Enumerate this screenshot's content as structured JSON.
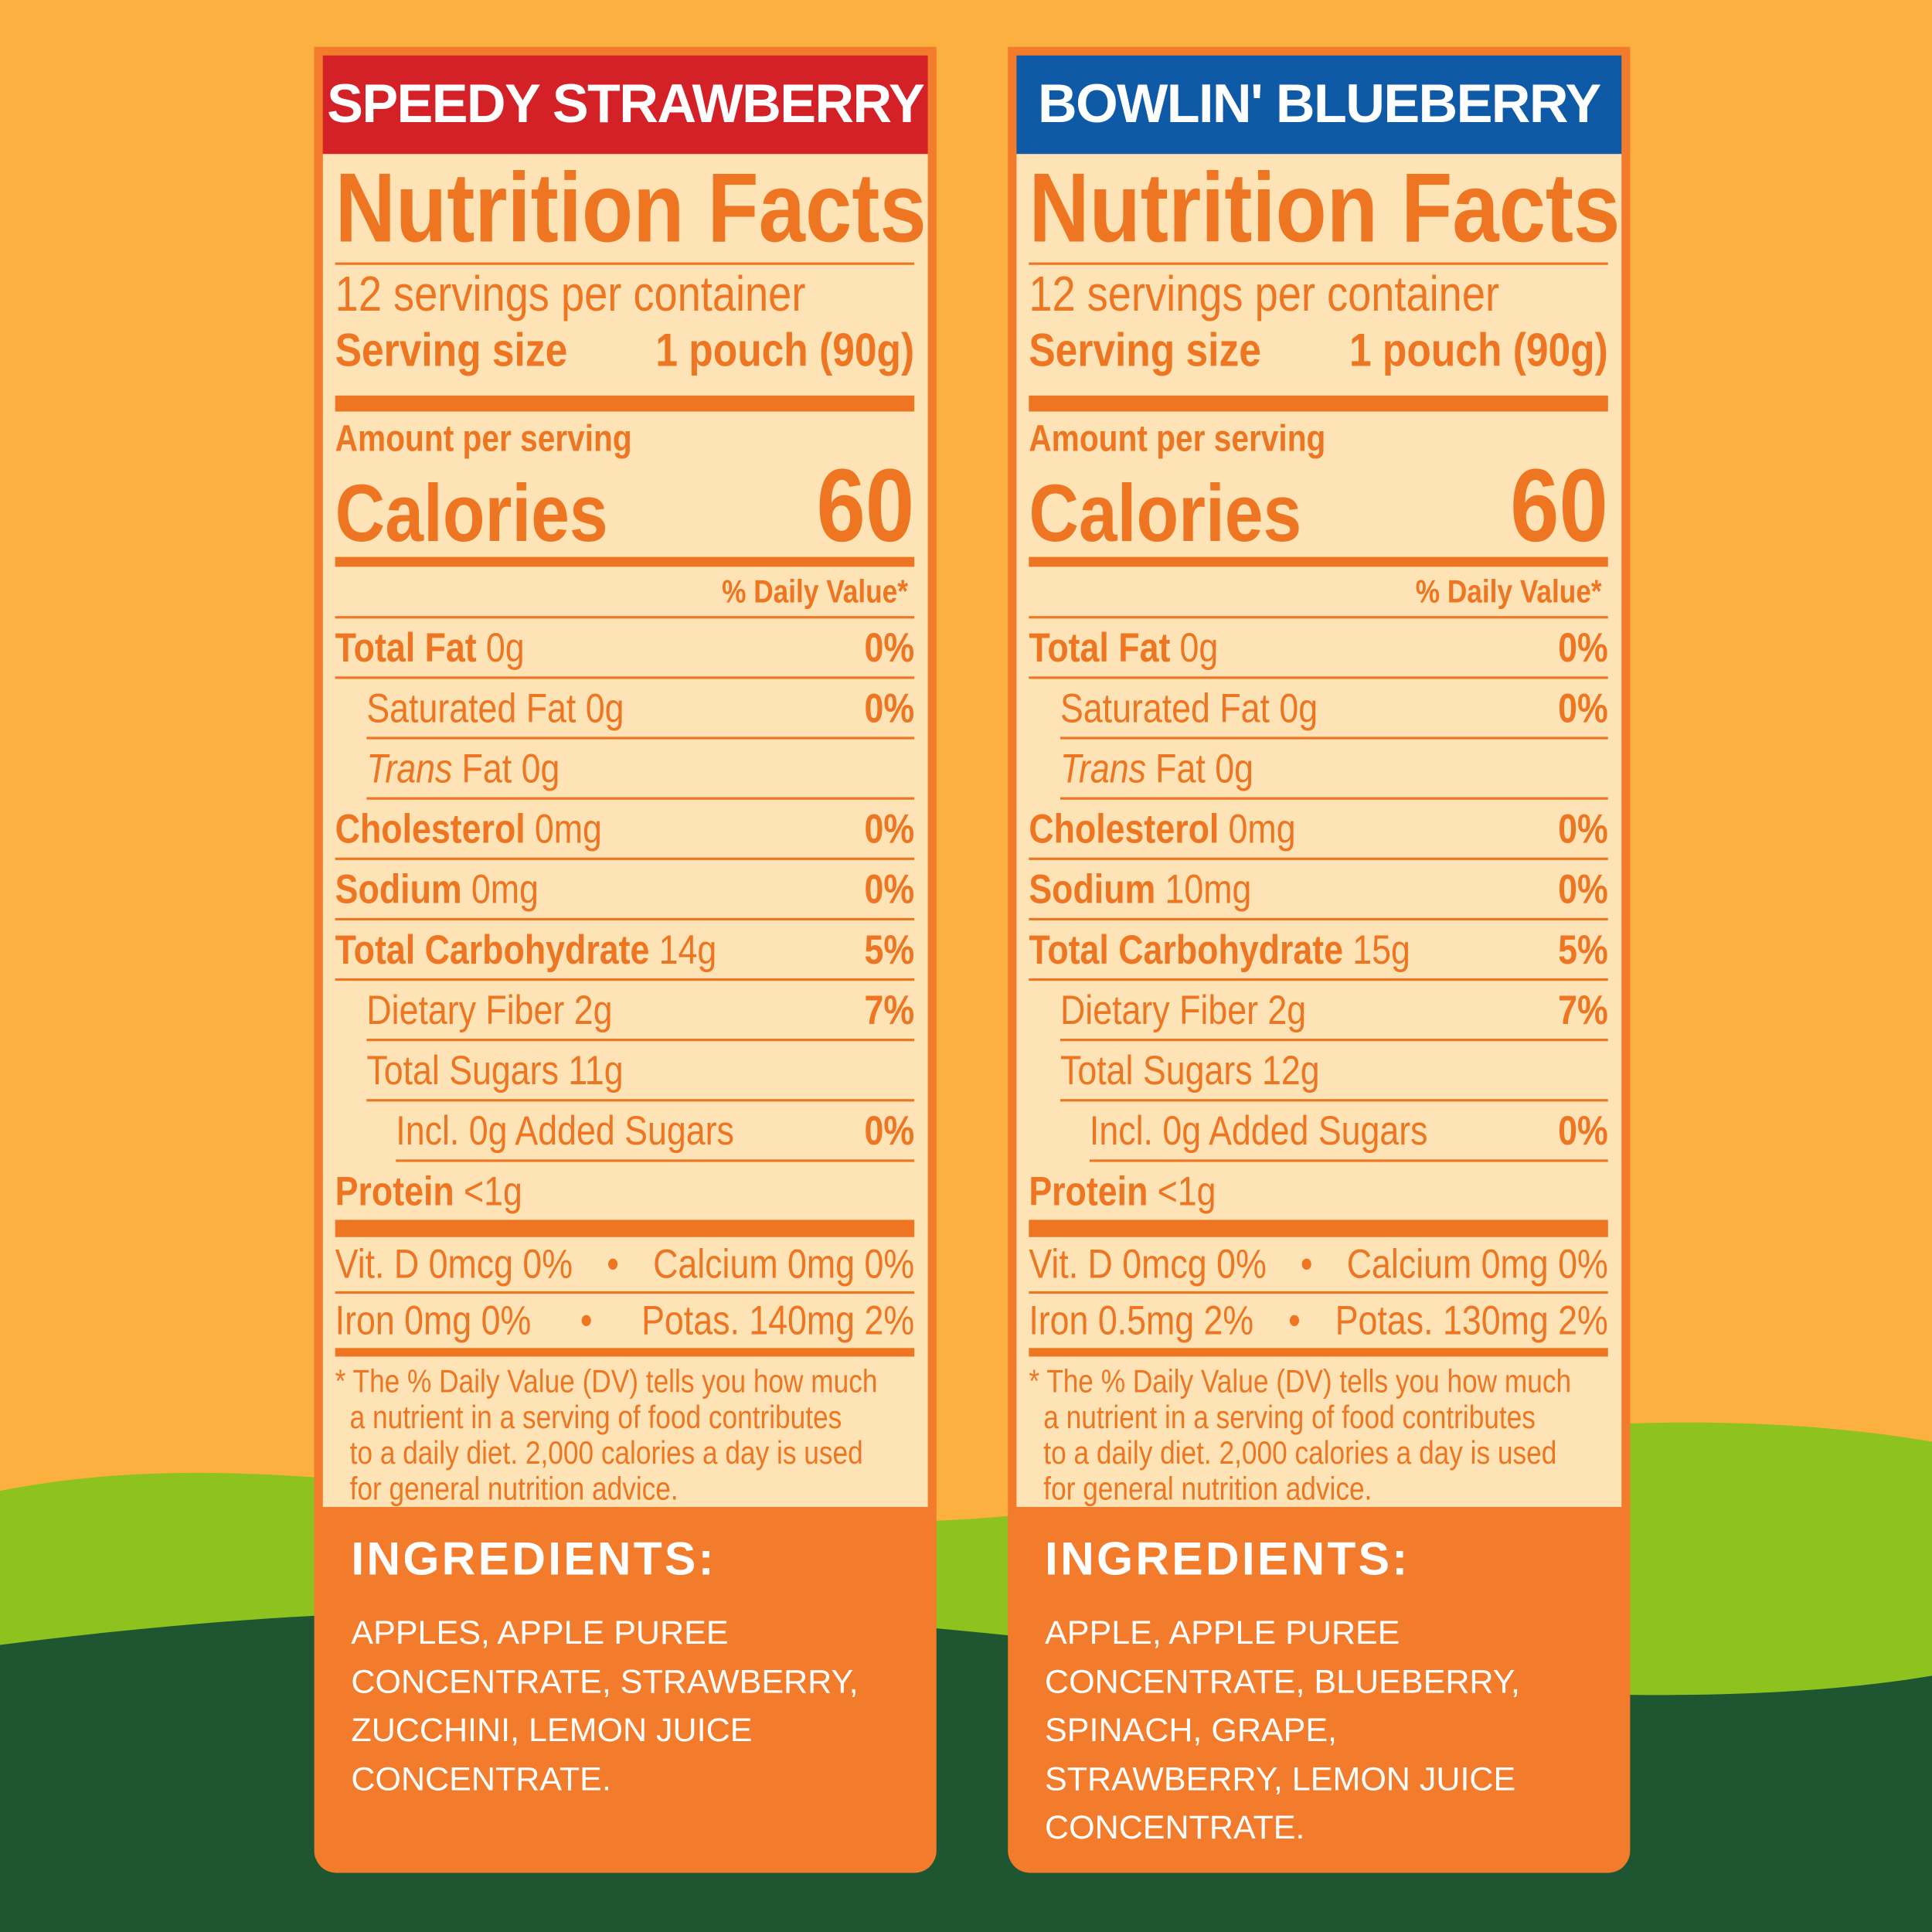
{
  "panels": [
    {
      "title": "SPEEDY STRAWBERRY",
      "banner_color": "#d42027",
      "heading": "Nutrition Facts",
      "servings": "12 servings per container",
      "serving_size_label": "Serving size",
      "serving_size_value": "1 pouch (90g)",
      "amount_per_serving": "Amount per serving",
      "calories_label": "Calories",
      "calories_value": "60",
      "dv_header": "% Daily Value*",
      "rows": [
        {
          "label": "Total Fat",
          "amount": "0g",
          "dv": "0%"
        },
        {
          "label": "Saturated Fat 0g",
          "dv": "0%"
        },
        {
          "label": "Trans",
          "amount": "Fat 0g"
        },
        {
          "label": "Cholesterol",
          "amount": "0mg",
          "dv": "0%"
        },
        {
          "label": "Sodium",
          "amount": "0mg",
          "dv": "0%"
        },
        {
          "label": "Total Carbohydrate",
          "amount": "14g",
          "dv": "5%"
        },
        {
          "label": "Dietary Fiber 2g",
          "dv": "7%"
        },
        {
          "label": "Total Sugars 11g"
        },
        {
          "label": "Incl. 0g Added Sugars",
          "dv": "0%"
        },
        {
          "label": "Protein",
          "amount": "<1g"
        }
      ],
      "vitamins": [
        [
          "Vit. D 0mcg 0%",
          "Calcium 0mg 0%"
        ],
        [
          "Iron 0mg 0%",
          "Potas. 140mg 2%"
        ]
      ],
      "footnote": [
        "* The % Daily Value (DV) tells you how much",
        "a nutrient in a serving of food contributes",
        "to a daily diet. 2,000 calories a day is used",
        "for general nutrition advice."
      ],
      "ingredients_title": "INGREDIENTS:",
      "ingredients": [
        "APPLES, APPLE PUREE",
        "CONCENTRATE, STRAWBERRY,",
        "ZUCCHINI, LEMON JUICE",
        "CONCENTRATE."
      ]
    },
    {
      "title": "BOWLIN' BLUEBERRY",
      "banner_color": "#0e5aa7",
      "heading": "Nutrition Facts",
      "servings": "12 servings per container",
      "serving_size_label": "Serving size",
      "serving_size_value": "1 pouch (90g)",
      "amount_per_serving": "Amount per serving",
      "calories_label": "Calories",
      "calories_value": "60",
      "dv_header": "% Daily Value*",
      "rows": [
        {
          "label": "Total Fat",
          "amount": "0g",
          "dv": "0%"
        },
        {
          "label": "Saturated Fat 0g",
          "dv": "0%"
        },
        {
          "label": "Trans",
          "amount": "Fat 0g"
        },
        {
          "label": "Cholesterol",
          "amount": "0mg",
          "dv": "0%"
        },
        {
          "label": "Sodium",
          "amount": "10mg",
          "dv": "0%"
        },
        {
          "label": "Total Carbohydrate",
          "amount": "15g",
          "dv": "5%"
        },
        {
          "label": "Dietary Fiber 2g",
          "dv": "7%"
        },
        {
          "label": "Total Sugars 12g"
        },
        {
          "label": "Incl. 0g Added Sugars",
          "dv": "0%"
        },
        {
          "label": "Protein",
          "amount": "<1g"
        }
      ],
      "vitamins": [
        [
          "Vit. D 0mcg 0%",
          "Calcium 0mg 0%"
        ],
        [
          "Iron 0.5mg 2%",
          "Potas. 130mg 2%"
        ]
      ],
      "footnote": [
        "* The % Daily Value (DV) tells you how much",
        "a nutrient in a serving of food contributes",
        "to a daily diet. 2,000 calories a day is used",
        "for general nutrition advice."
      ],
      "ingredients_title": "INGREDIENTS:",
      "ingredients": [
        "APPLE, APPLE PUREE",
        "CONCENTRATE, BLUEBERRY,",
        "SPINACH, GRAPE,",
        "STRAWBERRY, LEMON JUICE",
        "CONCENTRATE."
      ]
    }
  ]
}
